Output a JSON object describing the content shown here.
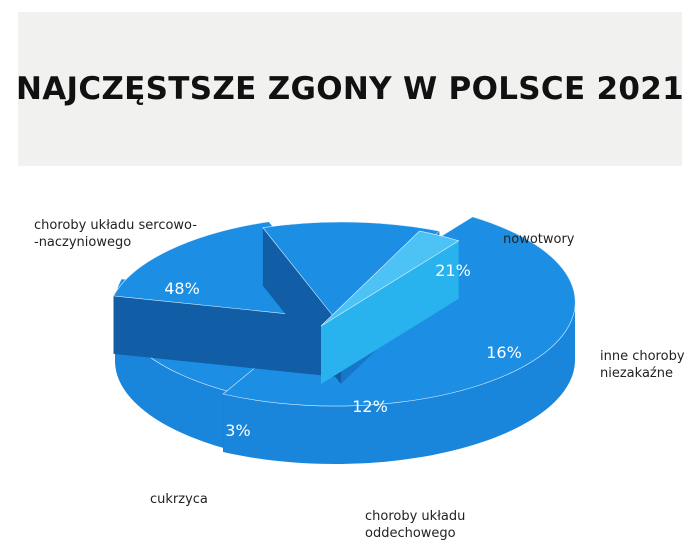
{
  "title": "NAJCZĘSTSZE ZGONY W POLSCE 2021",
  "colors": {
    "top": "#1c8ee4",
    "side": "#1a86db",
    "cut_light": "#1677c9",
    "cut_dark": "#115ea6",
    "diabetes_top": "#4cc3f4",
    "diabetes_side": "#28b3ef",
    "edge": "#dff1ff"
  },
  "chart_data": {
    "type": "pie",
    "style": "3d-exploded",
    "title": "NAJCZĘSTSZE ZGONY W POLSCE 2021",
    "slices": [
      {
        "label_lines": [
          "choroby układu sercowo-",
          "-naczyniowego"
        ],
        "value": 48,
        "value_label": "48%"
      },
      {
        "label_lines": [
          "nowotwory"
        ],
        "value": 21,
        "value_label": "21%"
      },
      {
        "label_lines": [
          "inne choroby",
          "niezakaźne"
        ],
        "value": 16,
        "value_label": "16%"
      },
      {
        "label_lines": [
          "choroby układu",
          "oddechowego"
        ],
        "value": 12,
        "value_label": "12%"
      },
      {
        "label_lines": [
          "cukrzyca"
        ],
        "value": 3,
        "value_label": "3%"
      }
    ]
  }
}
